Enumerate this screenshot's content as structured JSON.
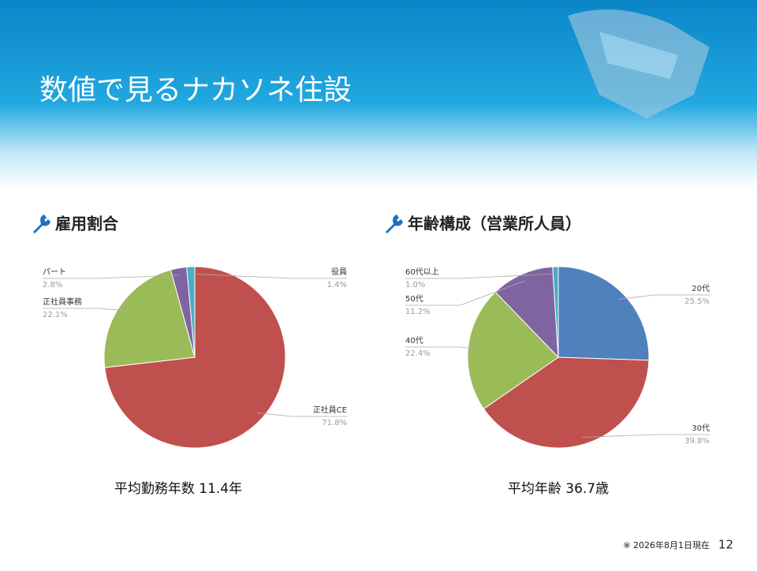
{
  "title": "数値で見るナカソネ住設",
  "chart_data": [
    {
      "type": "pie",
      "title": "雇用割合",
      "categories": [
        "正社員CE",
        "正社員事務",
        "パート",
        "役員"
      ],
      "values": [
        71.8,
        22.1,
        2.8,
        1.4
      ],
      "value_labels": [
        "71.8%",
        "22.1%",
        "2.8%",
        "1.4%"
      ],
      "colors": [
        "#c0504d",
        "#9bbb59",
        "#8064a2",
        "#4bacc6"
      ],
      "caption": "平均勤務年数 11.4年"
    },
    {
      "type": "pie",
      "title": "年齢構成（営業所人員）",
      "categories": [
        "20代",
        "30代",
        "40代",
        "50代",
        "60代以上"
      ],
      "values": [
        25.5,
        39.8,
        22.4,
        11.2,
        1.0
      ],
      "value_labels": [
        "25.5%",
        "39.8%",
        "22.4%",
        "11.2%",
        "1.0%"
      ],
      "colors": [
        "#4f81bd",
        "#c0504d",
        "#9bbb59",
        "#8064a2",
        "#4bacc6"
      ],
      "caption": "平均年齢 36.7歳"
    }
  ],
  "footnote": "※ 2026年8月1日現在",
  "page_number": "12"
}
